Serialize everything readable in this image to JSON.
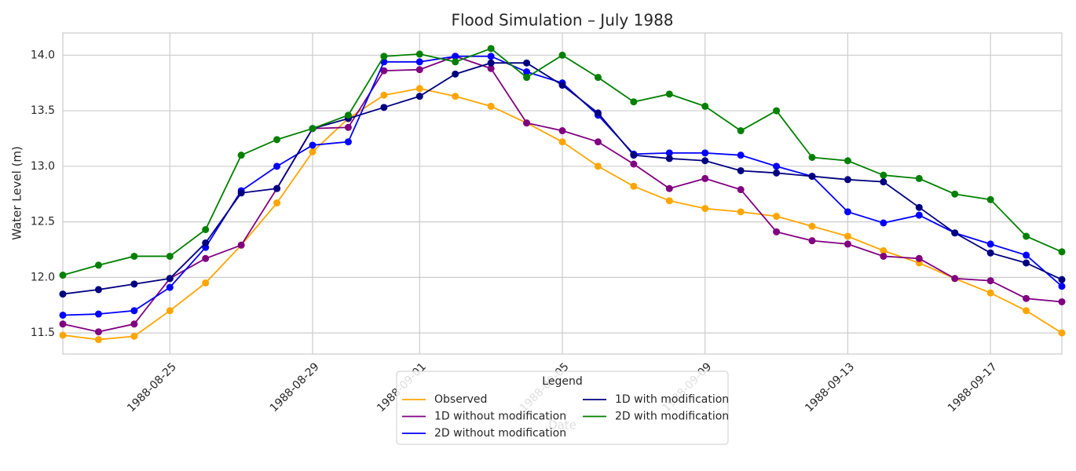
{
  "chart_data": {
    "type": "line",
    "title": "Flood Simulation – July 1988",
    "xlabel": "Date",
    "ylabel": "Water Level (m)",
    "x": [
      "1988-08-22",
      "1988-08-23",
      "1988-08-24",
      "1988-08-25",
      "1988-08-26",
      "1988-08-27",
      "1988-08-28",
      "1988-08-29",
      "1988-08-30",
      "1988-08-31",
      "1988-09-01",
      "1988-09-02",
      "1988-09-03",
      "1988-09-04",
      "1988-09-05",
      "1988-09-06",
      "1988-09-07",
      "1988-09-08",
      "1988-09-09",
      "1988-09-10",
      "1988-09-11",
      "1988-09-12",
      "1988-09-13",
      "1988-09-14",
      "1988-09-15",
      "1988-09-16",
      "1988-09-17",
      "1988-09-18",
      "1988-09-19"
    ],
    "series": [
      {
        "name": "Observed",
        "color": "#ffa500",
        "values": [
          11.48,
          11.44,
          11.47,
          11.7,
          11.95,
          12.29,
          12.67,
          13.13,
          13.43,
          13.64,
          13.7,
          13.63,
          13.54,
          13.39,
          13.22,
          13.0,
          12.82,
          12.69,
          12.62,
          12.59,
          12.55,
          12.46,
          12.37,
          12.24,
          12.13,
          11.99,
          11.86,
          11.7,
          11.5
        ]
      },
      {
        "name": "1D without modification",
        "color": "#800080",
        "values": [
          11.58,
          11.51,
          11.58,
          11.99,
          12.17,
          12.29,
          12.8,
          13.34,
          13.35,
          13.86,
          13.87,
          13.99,
          13.88,
          13.39,
          13.32,
          13.22,
          13.02,
          12.8,
          12.89,
          12.79,
          12.41,
          12.33,
          12.3,
          12.19,
          12.17,
          11.99,
          11.97,
          11.81,
          11.78
        ]
      },
      {
        "name": "2D without modification",
        "color": "#0000ff",
        "values": [
          11.66,
          11.67,
          11.7,
          11.91,
          12.27,
          12.78,
          13.0,
          13.19,
          13.22,
          13.94,
          13.94,
          13.99,
          13.99,
          13.85,
          13.75,
          13.46,
          13.11,
          13.12,
          13.12,
          13.1,
          13.0,
          12.91,
          12.59,
          12.49,
          12.56,
          12.4,
          12.3,
          12.2,
          11.92
        ]
      },
      {
        "name": "1D with modification",
        "color": "#000080",
        "values": [
          11.85,
          11.89,
          11.94,
          11.99,
          12.31,
          12.76,
          12.8,
          13.34,
          13.43,
          13.53,
          13.63,
          13.83,
          13.93,
          13.93,
          13.73,
          13.48,
          13.1,
          13.07,
          13.05,
          12.96,
          12.94,
          12.91,
          12.88,
          12.86,
          12.63,
          12.4,
          12.22,
          12.13,
          11.98
        ]
      },
      {
        "name": "2D with modification",
        "color": "#008000",
        "values": [
          12.02,
          12.11,
          12.19,
          12.19,
          12.43,
          13.1,
          13.24,
          13.34,
          13.46,
          13.99,
          14.01,
          13.94,
          14.06,
          13.8,
          14.0,
          13.8,
          13.58,
          13.65,
          13.54,
          13.32,
          13.5,
          13.08,
          13.05,
          12.92,
          12.89,
          12.75,
          12.7,
          12.37,
          12.23
        ]
      }
    ],
    "xlim": [
      "1988-08-22",
      "1988-09-19"
    ],
    "xticks": [
      "1988-08-25",
      "1988-08-29",
      "1988-09-01",
      "1988-09-05",
      "1988-09-09",
      "1988-09-13",
      "1988-09-17"
    ],
    "ylim": [
      11.31,
      14.2
    ],
    "yticks": [
      11.5,
      {
        "value": 12,
        "label": "12.0"
      },
      12.5,
      {
        "value": 13,
        "label": "13.0"
      },
      13.5,
      {
        "value": 14,
        "label": "14.0"
      }
    ],
    "grid": true,
    "markers": true,
    "legend": {
      "title": "Legend",
      "position": "bottom",
      "columns": 2
    }
  }
}
